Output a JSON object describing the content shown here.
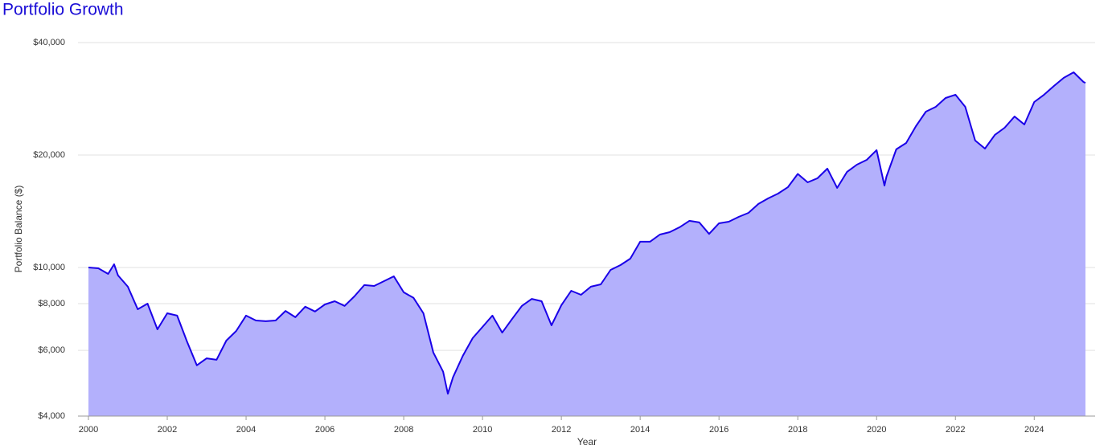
{
  "chart_data": {
    "type": "area",
    "title": "Portfolio Growth",
    "x_label": "Year",
    "y_label": "Portfolio Balance ($)",
    "y_log_scale": true,
    "grid": true,
    "xlim": [
      2000,
      2025.3
    ],
    "xticks": [
      2000,
      2002,
      2004,
      2006,
      2008,
      2010,
      2012,
      2014,
      2016,
      2018,
      2020,
      2022,
      2024
    ],
    "ylim": [
      4000,
      40000
    ],
    "yticks": [
      {
        "value": 4000,
        "label": "$4,000"
      },
      {
        "value": 6000,
        "label": "$6,000"
      },
      {
        "value": 8000,
        "label": "$8,000"
      },
      {
        "value": 10000,
        "label": "$10,000"
      },
      {
        "value": 20000,
        "label": "$20,000"
      },
      {
        "value": 40000,
        "label": "$40,000"
      }
    ],
    "series": [
      {
        "name": "Portfolio Balance",
        "color": "#1a00e8",
        "fill": "#b3b0fc",
        "x": [
          2000,
          2000.25,
          2000.5,
          2000.65,
          2000.75,
          2001,
          2001.25,
          2001.5,
          2001.75,
          2002,
          2002.25,
          2002.5,
          2002.75,
          2003,
          2003.25,
          2003.5,
          2003.75,
          2004,
          2004.25,
          2004.5,
          2004.75,
          2005,
          2005.25,
          2005.5,
          2005.75,
          2006,
          2006.25,
          2006.5,
          2006.75,
          2007,
          2007.25,
          2007.5,
          2007.75,
          2008,
          2008.25,
          2008.5,
          2008.75,
          2009,
          2009.12,
          2009.25,
          2009.5,
          2009.75,
          2010,
          2010.25,
          2010.5,
          2010.75,
          2011,
          2011.25,
          2011.5,
          2011.75,
          2012,
          2012.25,
          2012.5,
          2012.75,
          2013,
          2013.25,
          2013.5,
          2013.75,
          2014,
          2014.25,
          2014.5,
          2014.75,
          2015,
          2015.25,
          2015.5,
          2015.75,
          2016,
          2016.25,
          2016.5,
          2016.75,
          2017,
          2017.25,
          2017.5,
          2017.75,
          2018,
          2018.25,
          2018.5,
          2018.75,
          2019,
          2019.25,
          2019.5,
          2019.75,
          2020,
          2020.2,
          2020.25,
          2020.5,
          2020.75,
          2021,
          2021.25,
          2021.5,
          2021.75,
          2022,
          2022.25,
          2022.5,
          2022.75,
          2023,
          2023.25,
          2023.5,
          2023.75,
          2024,
          2024.25,
          2024.5,
          2024.75,
          2025,
          2025.25,
          2025.3
        ],
        "values": [
          10000,
          9950,
          9610,
          10200,
          9520,
          8880,
          7730,
          8000,
          6830,
          7540,
          7430,
          6340,
          5470,
          5710,
          5660,
          6370,
          6760,
          7430,
          7210,
          7180,
          7210,
          7650,
          7360,
          7850,
          7620,
          7960,
          8120,
          7890,
          8370,
          8970,
          8920,
          9190,
          9470,
          8580,
          8290,
          7540,
          5920,
          5260,
          4590,
          5080,
          5800,
          6470,
          6930,
          7430,
          6690,
          7280,
          7890,
          8240,
          8120,
          7000,
          7920,
          8660,
          8450,
          8880,
          9010,
          9850,
          10150,
          10560,
          11720,
          11720,
          12250,
          12430,
          12810,
          13330,
          13200,
          12300,
          13130,
          13260,
          13660,
          14000,
          14790,
          15310,
          15770,
          16410,
          17800,
          16900,
          17330,
          18390,
          16330,
          18030,
          18840,
          19410,
          20610,
          16570,
          17500,
          20710,
          21540,
          23900,
          26130,
          26920,
          28430,
          29000,
          26920,
          21870,
          20810,
          22640,
          23670,
          25360,
          24140,
          27730,
          29000,
          30620,
          32180,
          33310,
          31380,
          31200
        ]
      }
    ]
  }
}
